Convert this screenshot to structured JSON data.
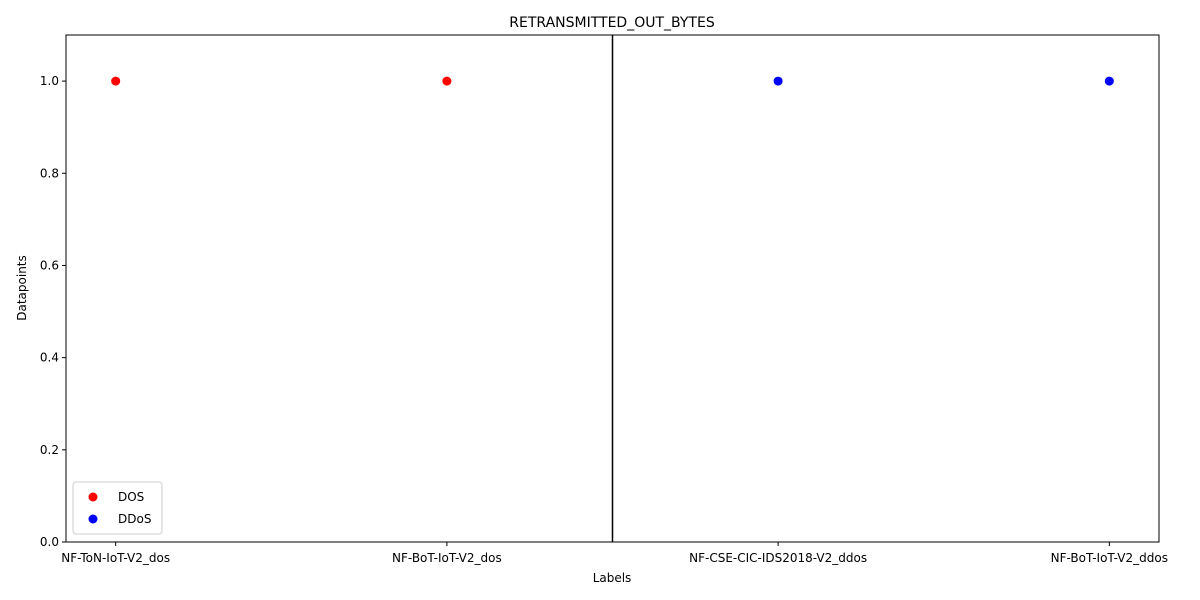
{
  "chart_data": {
    "type": "scatter",
    "title": "RETRANSMITTED_OUT_BYTES",
    "xlabel": "Labels",
    "ylabel": "Datapoints",
    "categories": [
      "NF-ToN-IoT-V2_dos",
      "NF-BoT-IoT-V2_dos",
      "NF-CSE-CIC-IDS2018-V2_ddos",
      "NF-BoT-IoT-V2_ddos"
    ],
    "ylim": [
      0,
      1.1
    ],
    "yticks": [
      "0.0",
      "0.2",
      "0.4",
      "0.6",
      "0.8",
      "1.0"
    ],
    "grid": false,
    "legend_position": "lower-left",
    "divider_between_categories": [
      1,
      2
    ],
    "series": [
      {
        "name": "DOS",
        "color": "#ff0000",
        "points": [
          {
            "category": "NF-ToN-IoT-V2_dos",
            "value": 1.0
          },
          {
            "category": "NF-BoT-IoT-V2_dos",
            "value": 1.0
          }
        ]
      },
      {
        "name": "DDoS",
        "color": "#0000ff",
        "points": [
          {
            "category": "NF-CSE-CIC-IDS2018-V2_ddos",
            "value": 1.0
          },
          {
            "category": "NF-BoT-IoT-V2_ddos",
            "value": 1.0
          }
        ]
      }
    ]
  }
}
